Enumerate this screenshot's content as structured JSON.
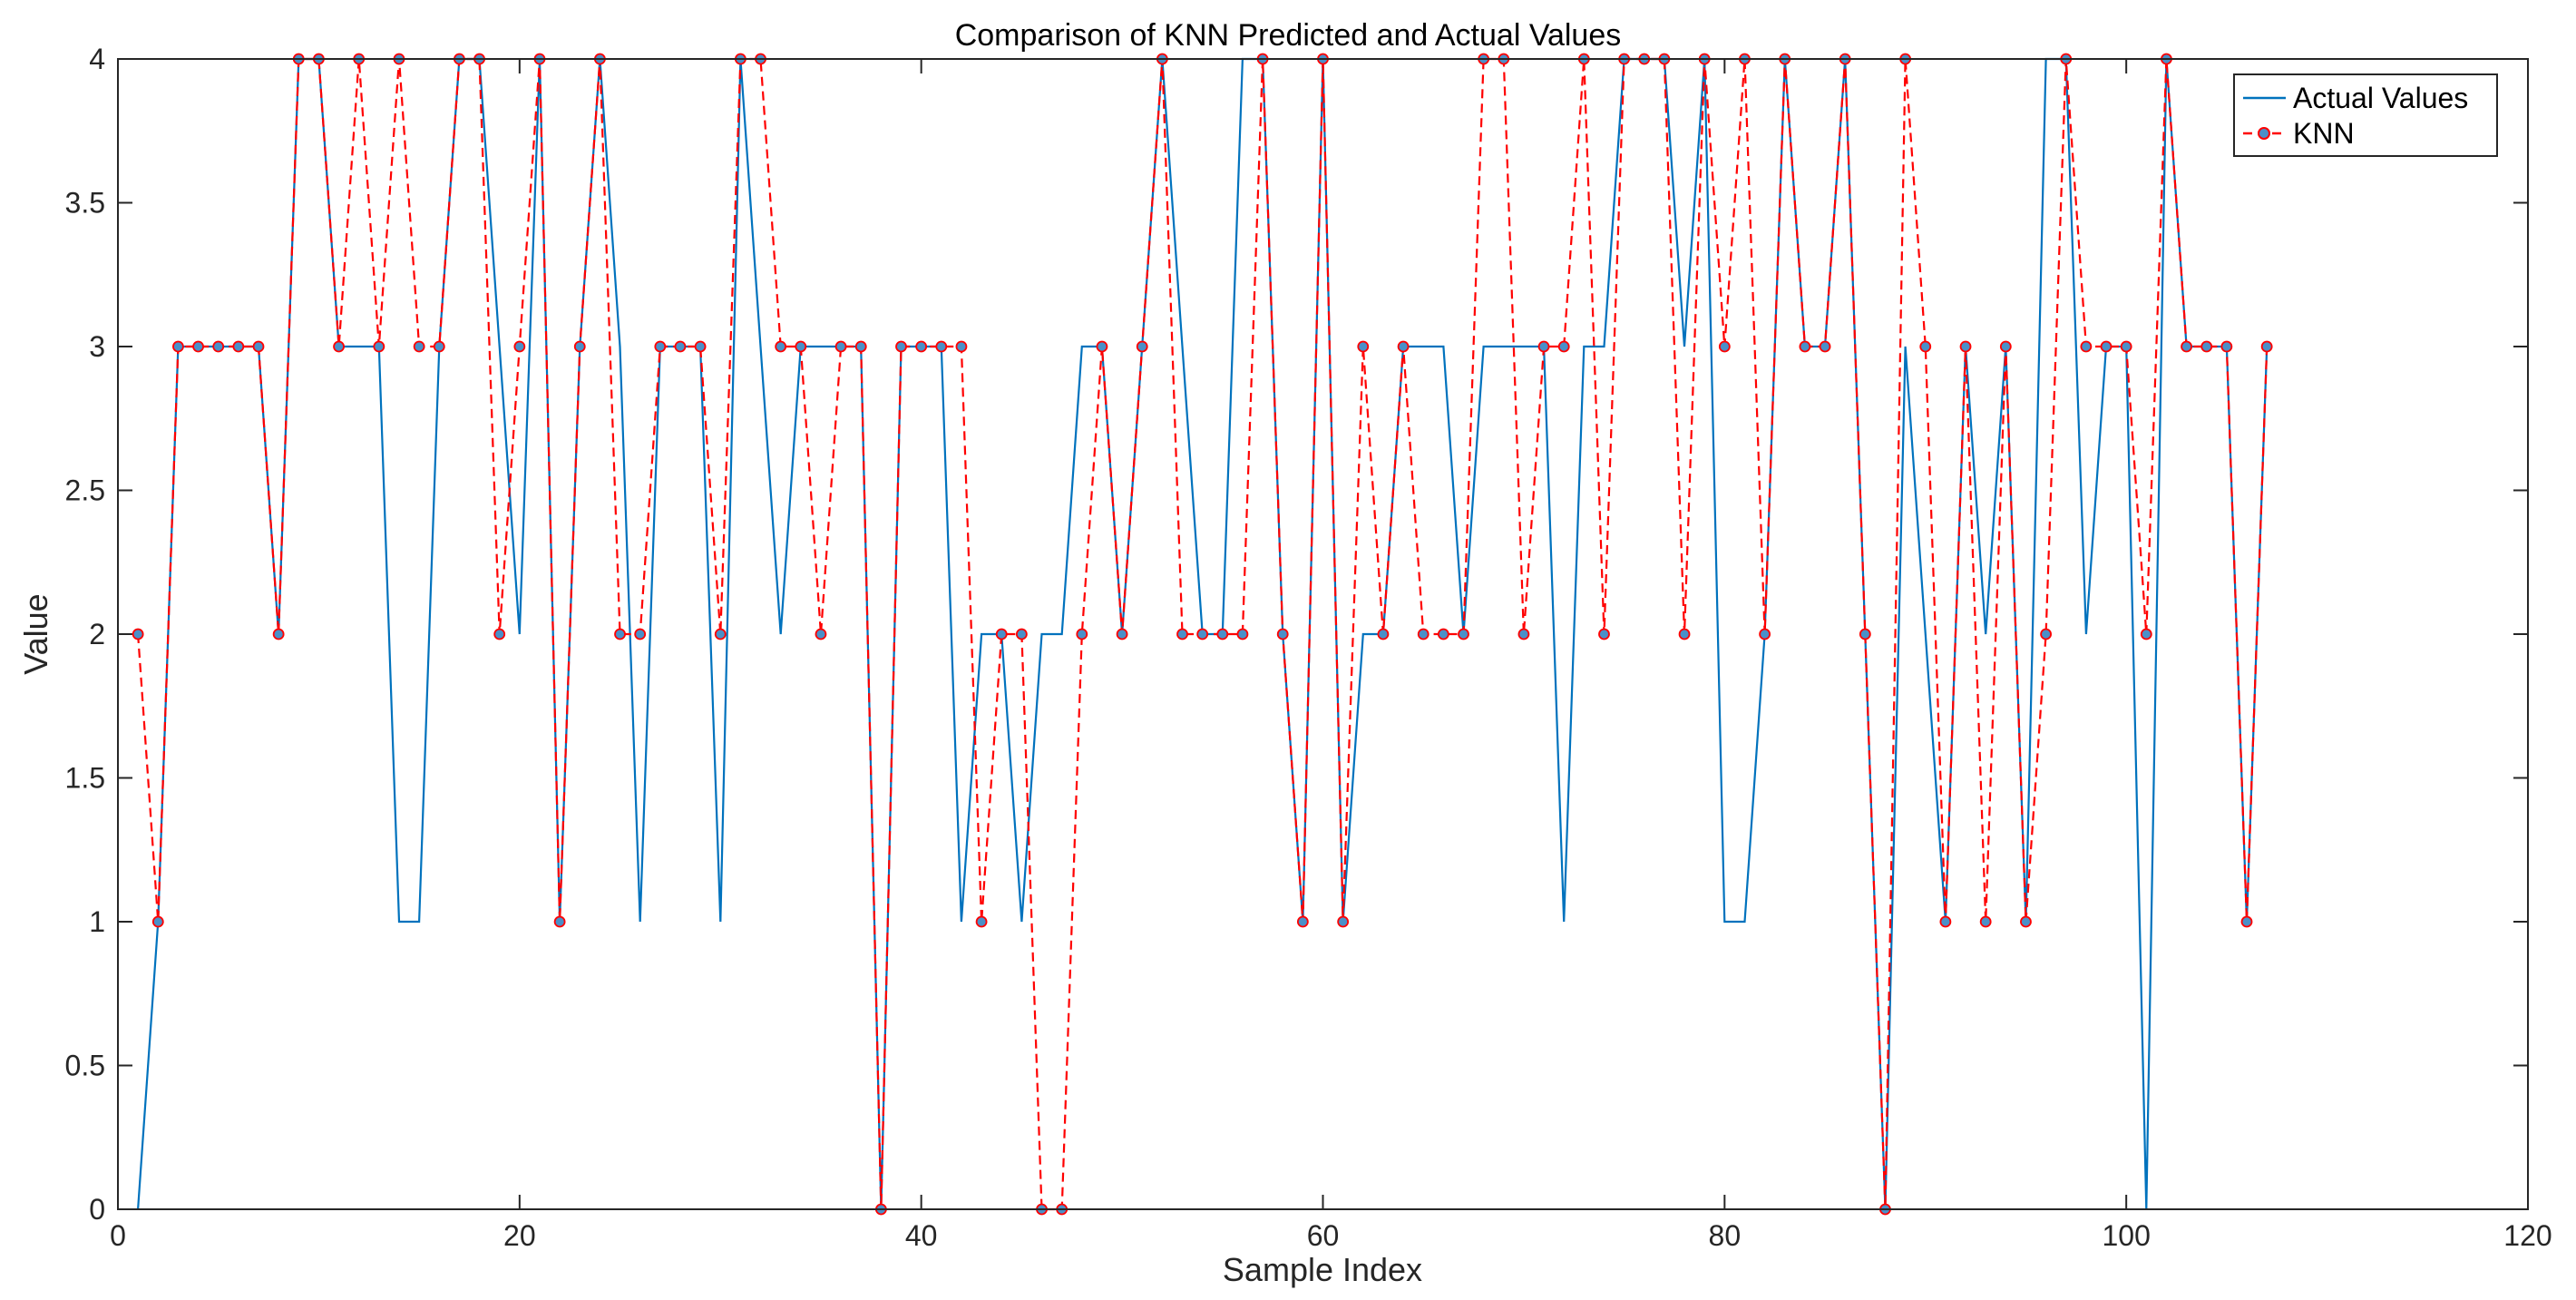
{
  "chart_data": {
    "type": "line",
    "title": "Comparison of KNN Predicted and Actual Values",
    "xlabel": "Sample Index",
    "ylabel": "Value",
    "xlim": [
      0,
      120
    ],
    "ylim": [
      0,
      4
    ],
    "xticks": [
      0,
      20,
      40,
      60,
      80,
      100,
      120
    ],
    "xtick_labels": [
      "0",
      "20",
      "40",
      "60",
      "80",
      "100",
      "120"
    ],
    "yticks": [
      0,
      0.5,
      1,
      1.5,
      2,
      2.5,
      3,
      3.5,
      4
    ],
    "ytick_labels": [
      "0",
      "0.5",
      "1",
      "1.5",
      "2",
      "2.5",
      "3",
      "3.5",
      "4"
    ],
    "grid": false,
    "legend_position": "top-right",
    "x": [
      1,
      2,
      3,
      4,
      5,
      6,
      7,
      8,
      9,
      10,
      11,
      12,
      13,
      14,
      15,
      16,
      17,
      18,
      19,
      20,
      21,
      22,
      23,
      24,
      25,
      26,
      27,
      28,
      29,
      30,
      31,
      32,
      33,
      34,
      35,
      36,
      37,
      38,
      39,
      40,
      41,
      42,
      43,
      44,
      45,
      46,
      47,
      48,
      49,
      50,
      51,
      52,
      53,
      54,
      55,
      56,
      57,
      58,
      59,
      60,
      61,
      62,
      63,
      64,
      65,
      66,
      67,
      68,
      69,
      70,
      71,
      72,
      73,
      74,
      75,
      76,
      77,
      78,
      79,
      80,
      81,
      82,
      83,
      84,
      85,
      86,
      87,
      88,
      89,
      90,
      91,
      92,
      93,
      94,
      95,
      96,
      97,
      98,
      99,
      100,
      101,
      102,
      103,
      104,
      105,
      106,
      107
    ],
    "series": [
      {
        "name": "Actual Values",
        "color": "#0072BD",
        "style": "solid",
        "values": [
          0,
          1,
          3,
          3,
          3,
          3,
          3,
          2,
          4,
          4,
          3,
          3,
          3,
          1,
          1,
          3,
          4,
          4,
          3,
          2,
          4,
          1,
          3,
          4,
          3,
          1,
          3,
          3,
          3,
          1,
          4,
          3,
          2,
          3,
          3,
          3,
          3,
          0,
          3,
          3,
          3,
          1,
          2,
          2,
          1,
          2,
          2,
          3,
          3,
          2,
          3,
          4,
          3,
          2,
          2,
          4,
          4,
          2,
          1,
          4,
          1,
          2,
          2,
          3,
          3,
          3,
          2,
          3,
          3,
          3,
          3,
          1,
          3,
          3,
          4,
          4,
          4,
          3,
          4,
          1,
          1,
          2,
          4,
          3,
          3,
          4,
          2,
          0,
          3,
          2,
          1,
          3,
          2,
          3,
          1,
          4,
          4,
          2,
          3,
          3,
          0,
          4,
          3,
          3,
          3,
          1,
          3
        ]
      },
      {
        "name": "KNN",
        "color": "#FF0000",
        "marker_color": "#4A90C8",
        "style": "dashed",
        "values": [
          2,
          1,
          3,
          3,
          3,
          3,
          3,
          2,
          4,
          4,
          3,
          4,
          3,
          4,
          3,
          3,
          4,
          4,
          2,
          3,
          4,
          1,
          3,
          4,
          2,
          2,
          3,
          3,
          3,
          2,
          4,
          4,
          3,
          3,
          2,
          3,
          3,
          0,
          3,
          3,
          3,
          3,
          1,
          2,
          2,
          0,
          0,
          2,
          3,
          2,
          3,
          4,
          2,
          2,
          2,
          2,
          4,
          2,
          1,
          4,
          1,
          3,
          2,
          3,
          2,
          2,
          2,
          4,
          4,
          2,
          3,
          3,
          4,
          2,
          4,
          4,
          4,
          2,
          4,
          3,
          4,
          2,
          4,
          3,
          3,
          4,
          2,
          0,
          4,
          3,
          1,
          3,
          1,
          3,
          1,
          2,
          4,
          3,
          3,
          3,
          2,
          4,
          3,
          3,
          3,
          1,
          3
        ]
      }
    ]
  }
}
